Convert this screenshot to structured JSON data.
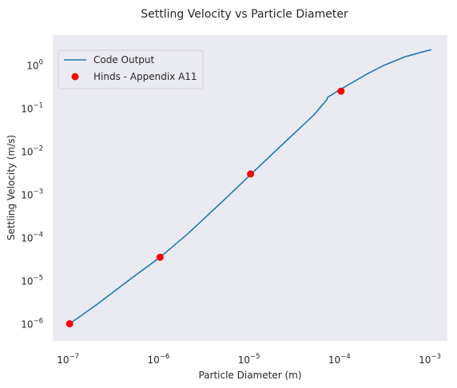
{
  "chart_data": {
    "type": "line",
    "title": "Settling Velocity vs Particle Diameter",
    "xlabel": "Particle Diameter (m)",
    "ylabel": "Settling Velocity (m/s)",
    "xscale": "log",
    "yscale": "log",
    "xlim": [
      6.5e-08,
      0.0015
    ],
    "ylim": [
      4e-07,
      5
    ],
    "grid": false,
    "legend_position": "top-left",
    "x_ticks": [
      {
        "base": "10",
        "exp": "−7"
      },
      {
        "base": "10",
        "exp": "−6"
      },
      {
        "base": "10",
        "exp": "−5"
      },
      {
        "base": "10",
        "exp": "−4"
      },
      {
        "base": "10",
        "exp": "−3"
      }
    ],
    "y_ticks": [
      {
        "base": "10",
        "exp": "−6"
      },
      {
        "base": "10",
        "exp": "−5"
      },
      {
        "base": "10",
        "exp": "−4"
      },
      {
        "base": "10",
        "exp": "−3"
      },
      {
        "base": "10",
        "exp": "−2"
      },
      {
        "base": "10",
        "exp": "−1"
      },
      {
        "base": "10",
        "exp": "0"
      }
    ],
    "series": [
      {
        "name": "Code Output",
        "kind": "line",
        "color": "#1f77b4",
        "x": [
          1e-07,
          2e-07,
          5e-07,
          1e-06,
          2e-06,
          5e-06,
          1e-05,
          2e-05,
          5e-05,
          7e-05,
          7.1e-05,
          0.0001,
          0.0002,
          0.0003,
          0.0005,
          0.0007,
          0.001
        ],
        "y": [
          1e-06,
          2.8e-06,
          1.2e-05,
          3.5e-05,
          0.00012,
          0.00072,
          0.0029,
          0.0115,
          0.07,
          0.16,
          0.18,
          0.28,
          0.65,
          1.0,
          1.55,
          1.9,
          2.3
        ]
      },
      {
        "name": "Hinds - Appendix A11",
        "kind": "scatter",
        "color": "#ff0000",
        "x": [
          1e-07,
          1e-06,
          1e-05,
          0.0001
        ],
        "y": [
          1e-06,
          3.5e-05,
          0.003,
          0.25
        ]
      }
    ]
  }
}
